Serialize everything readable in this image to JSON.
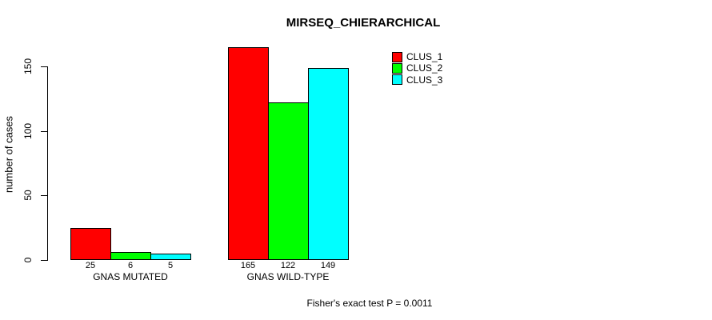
{
  "chart_data": {
    "type": "bar",
    "title": "MIRSEQ_CHIERARCHICAL",
    "ylabel": "number of cases",
    "xlabel": "",
    "categories": [
      "GNAS MUTATED",
      "GNAS WILD-TYPE"
    ],
    "series": [
      {
        "name": "CLUS_1",
        "color": "#FF0000",
        "values": [
          25,
          165
        ]
      },
      {
        "name": "CLUS_2",
        "color": "#00FF00",
        "values": [
          6,
          122
        ]
      },
      {
        "name": "CLUS_3",
        "color": "#00FFFF",
        "values": [
          5,
          149
        ]
      }
    ],
    "yticks": [
      0,
      50,
      100,
      150
    ],
    "ylim": [
      0,
      168
    ],
    "grid": false,
    "legend_position": "top-right",
    "bar_value_labels": [
      [
        "25",
        "6",
        "5"
      ],
      [
        "165",
        "122",
        "149"
      ]
    ],
    "annotation": "Fisher's exact test P = 0.0011"
  }
}
